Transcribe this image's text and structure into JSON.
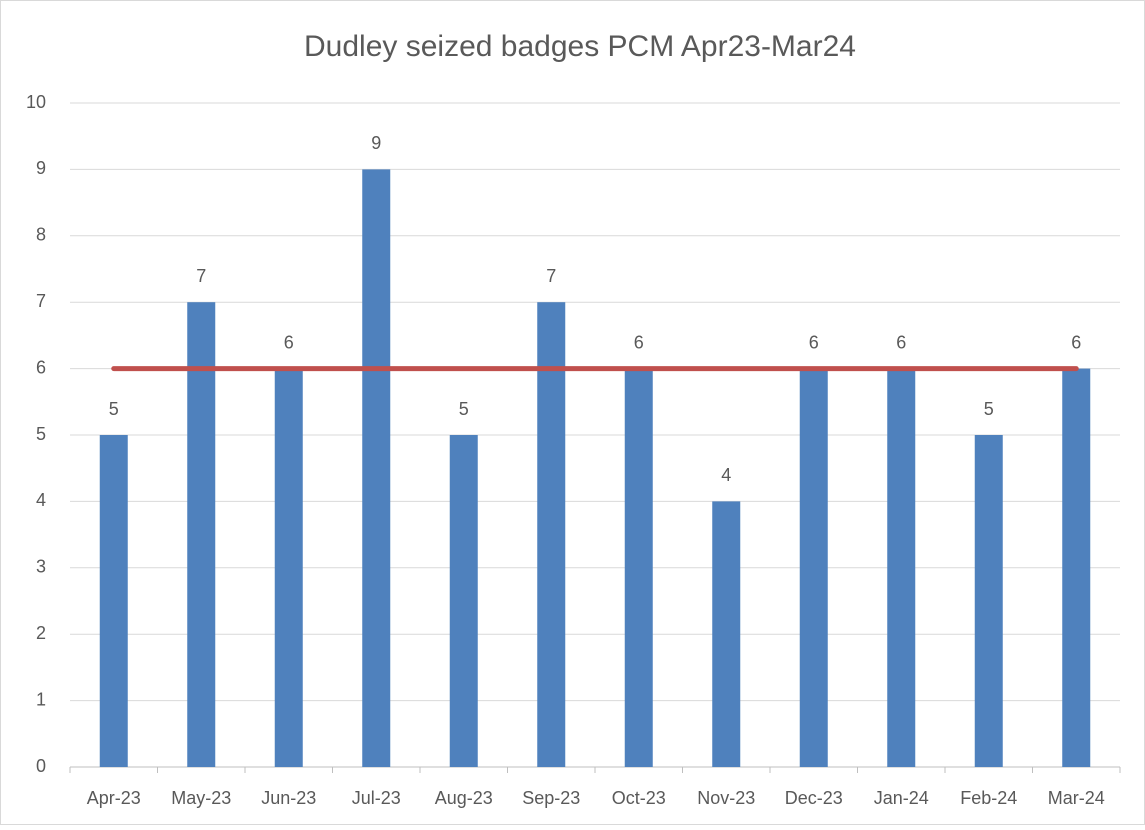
{
  "chart_data": {
    "type": "bar",
    "title": "Dudley seized badges PCM Apr23-Mar24",
    "categories": [
      "Apr-23",
      "May-23",
      "Jun-23",
      "Jul-23",
      "Aug-23",
      "Sep-23",
      "Oct-23",
      "Nov-23",
      "Dec-23",
      "Jan-24",
      "Feb-24",
      "Mar-24"
    ],
    "series": [
      {
        "color": "#4f81bd",
        "values": [
          5,
          7,
          6,
          9,
          5,
          7,
          6,
          4,
          6,
          6,
          5,
          6
        ]
      },
      {
        "type": "line",
        "color": "#c0504d",
        "values": [
          6,
          6,
          6,
          6,
          6,
          6,
          6,
          6,
          6,
          6,
          6,
          6
        ]
      }
    ],
    "ylim": [
      0,
      10
    ],
    "yticks": [
      0,
      1,
      2,
      3,
      4,
      5,
      6,
      7,
      8,
      9,
      10
    ],
    "grid": true
  }
}
